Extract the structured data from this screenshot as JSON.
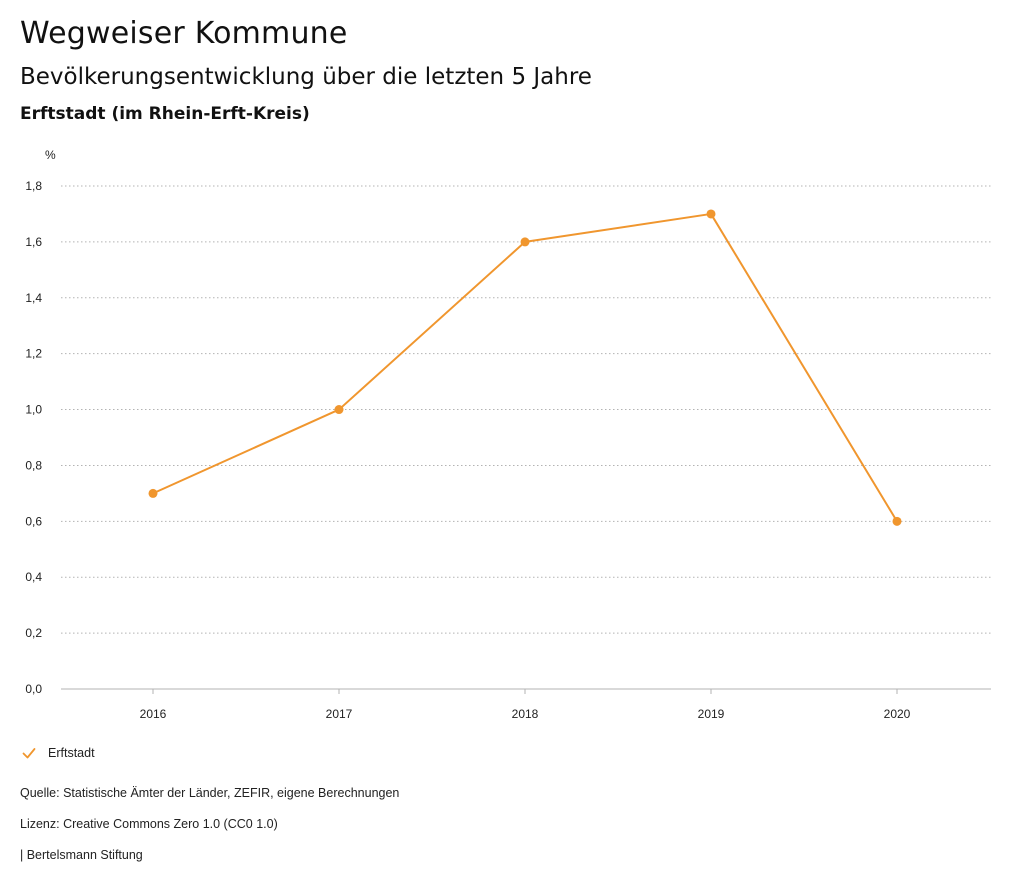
{
  "header": {
    "title": "Wegweiser Kommune",
    "subtitle": "Bevölkerungsentwicklung über die letzten 5 Jahre",
    "region": "Erftstadt (im Rhein-Erft-Kreis)"
  },
  "chart_data": {
    "type": "line",
    "title": "Bevölkerungsentwicklung über die letzten 5 Jahre",
    "subtitle": "Erftstadt (im Rhein-Erft-Kreis)",
    "xlabel": "",
    "ylabel": "%",
    "categories": [
      "2016",
      "2017",
      "2018",
      "2019",
      "2020"
    ],
    "series": [
      {
        "name": "Erftstadt",
        "values": [
          0.7,
          1.0,
          1.6,
          1.7,
          0.6
        ],
        "color": "#f0962e"
      }
    ],
    "ylim": [
      0,
      1.8
    ],
    "yticks": [
      0,
      0.2,
      0.4,
      0.6,
      0.8,
      1.0,
      1.2,
      1.4,
      1.6,
      1.8
    ],
    "ytick_labels": [
      "0,0",
      "0,2",
      "0,4",
      "0,6",
      "0,8",
      "1,0",
      "1,2",
      "1,4",
      "1,6",
      "1,8"
    ],
    "grid": true,
    "legend_position": "bottom-left"
  },
  "footer": {
    "source": "Quelle: Statistische Ämter der Länder, ZEFIR, eigene Berechnungen",
    "license": "Lizenz: Creative Commons Zero 1.0 (CC0 1.0)",
    "publisher": "| Bertelsmann Stiftung"
  },
  "colors": {
    "series": "#f0962e",
    "grid": "#b3b3b3",
    "axis": "#b3b3b3"
  }
}
